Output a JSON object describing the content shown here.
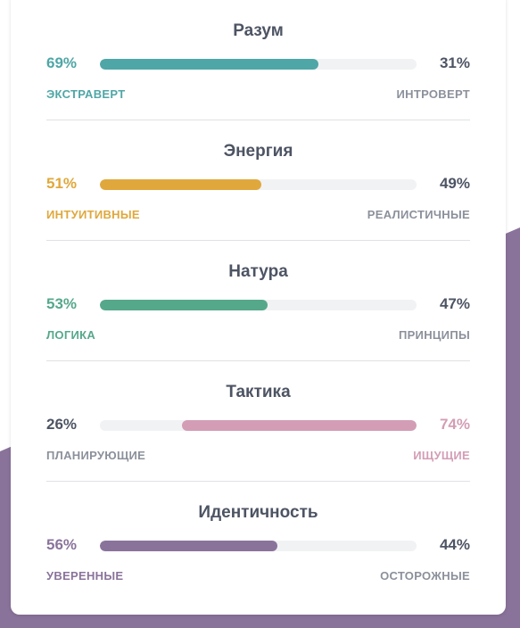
{
  "accent_background": "#8a739b",
  "traits": [
    {
      "title": "Разум",
      "left_percent": "69%",
      "right_percent": "31%",
      "left_label": "ЭКСТРАВЕРТ",
      "right_label": "ИНТРОВЕРТ",
      "value": 0.69,
      "dominant": "left",
      "color": "#4fa6a6"
    },
    {
      "title": "Энергия",
      "left_percent": "51%",
      "right_percent": "49%",
      "left_label": "ИНТУИТИВНЫЕ",
      "right_label": "РЕАЛИСТИЧНЫЕ",
      "value": 0.51,
      "dominant": "left",
      "color": "#e0a83c"
    },
    {
      "title": "Натура",
      "left_percent": "53%",
      "right_percent": "47%",
      "left_label": "ЛОГИКА",
      "right_label": "ПРИНЦИПЫ",
      "value": 0.53,
      "dominant": "left",
      "color": "#56a88b"
    },
    {
      "title": "Тактика",
      "left_percent": "26%",
      "right_percent": "74%",
      "left_label": "ПЛАНИРУЮЩИЕ",
      "right_label": "ИЩУЩИЕ",
      "value": 0.74,
      "dominant": "right",
      "color": "#d39db5"
    },
    {
      "title": "Идентичность",
      "left_percent": "56%",
      "right_percent": "44%",
      "left_label": "УВЕРЕННЫЕ",
      "right_label": "ОСТОРОЖНЫЕ",
      "value": 0.56,
      "dominant": "left",
      "color": "#8a739b"
    }
  ]
}
